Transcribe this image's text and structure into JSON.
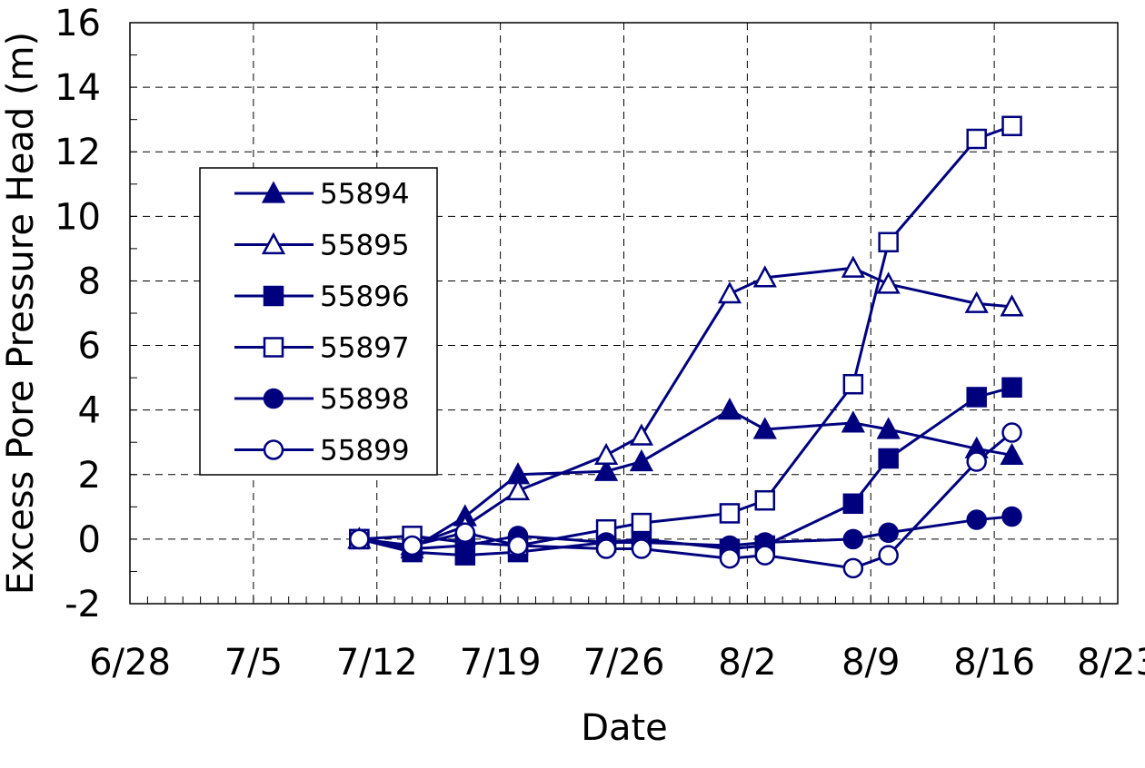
{
  "chart_data": {
    "type": "line",
    "title": "",
    "xlabel": "Date",
    "ylabel": "Excess Pore Pressure Head (m)",
    "x_ticks": [
      "6/28",
      "7/5",
      "7/12",
      "7/19",
      "7/26",
      "8/2",
      "8/9",
      "8/16",
      "8/23"
    ],
    "x_tick_dates": [
      "2024-06-28",
      "2024-07-05",
      "2024-07-12",
      "2024-07-19",
      "2024-07-26",
      "2024-08-02",
      "2024-08-09",
      "2024-08-16",
      "2024-08-23"
    ],
    "xlim": [
      "2024-06-28",
      "2024-08-23"
    ],
    "y_ticks": [
      "-2",
      "0",
      "2",
      "4",
      "6",
      "8",
      "10",
      "12",
      "14",
      "16"
    ],
    "ylim": [
      -2,
      16
    ],
    "grid": true,
    "legend_position": "upper-left inside plot",
    "line_color": "#00007f",
    "series": [
      {
        "name": "55894",
        "marker": "triangle-filled",
        "x": [
          "2024-07-11",
          "2024-07-14",
          "2024-07-17",
          "2024-07-20",
          "2024-07-25",
          "2024-07-27",
          "2024-08-01",
          "2024-08-03",
          "2024-08-08",
          "2024-08-10",
          "2024-08-15",
          "2024-08-17"
        ],
        "y": [
          0,
          -0.3,
          0.7,
          2.0,
          2.1,
          2.4,
          4.0,
          3.4,
          3.6,
          3.4,
          2.8,
          2.6
        ]
      },
      {
        "name": "55895",
        "marker": "triangle-open",
        "x": [
          "2024-07-11",
          "2024-07-14",
          "2024-07-17",
          "2024-07-20",
          "2024-07-25",
          "2024-07-27",
          "2024-08-01",
          "2024-08-03",
          "2024-08-08",
          "2024-08-10",
          "2024-08-15",
          "2024-08-17"
        ],
        "y": [
          0,
          -0.2,
          0.4,
          1.5,
          2.6,
          3.2,
          7.6,
          8.1,
          8.4,
          7.9,
          7.3,
          7.2
        ]
      },
      {
        "name": "55896",
        "marker": "square-filled",
        "x": [
          "2024-07-11",
          "2024-07-14",
          "2024-07-17",
          "2024-07-20",
          "2024-07-25",
          "2024-07-27",
          "2024-08-01",
          "2024-08-03",
          "2024-08-08",
          "2024-08-10",
          "2024-08-15",
          "2024-08-17"
        ],
        "y": [
          0,
          -0.4,
          -0.5,
          -0.4,
          -0.1,
          0,
          -0.3,
          -0.2,
          1.1,
          2.5,
          4.4,
          4.7
        ]
      },
      {
        "name": "55897",
        "marker": "square-open",
        "x": [
          "2024-07-11",
          "2024-07-14",
          "2024-07-17",
          "2024-07-20",
          "2024-07-25",
          "2024-07-27",
          "2024-08-01",
          "2024-08-03",
          "2024-08-08",
          "2024-08-10",
          "2024-08-15",
          "2024-08-17"
        ],
        "y": [
          0,
          0.1,
          -0.1,
          -0.2,
          0.3,
          0.5,
          0.8,
          1.2,
          4.8,
          9.2,
          12.4,
          12.8
        ]
      },
      {
        "name": "55898",
        "marker": "circle-filled",
        "x": [
          "2024-07-11",
          "2024-07-14",
          "2024-07-17",
          "2024-07-20",
          "2024-07-25",
          "2024-07-27",
          "2024-08-01",
          "2024-08-03",
          "2024-08-08",
          "2024-08-10",
          "2024-08-15",
          "2024-08-17"
        ],
        "y": [
          0,
          -0.3,
          -0.2,
          0.1,
          -0.1,
          -0.1,
          -0.2,
          -0.1,
          0,
          0.2,
          0.6,
          0.7
        ]
      },
      {
        "name": "55899",
        "marker": "circle-open",
        "x": [
          "2024-07-11",
          "2024-07-14",
          "2024-07-17",
          "2024-07-20",
          "2024-07-25",
          "2024-07-27",
          "2024-08-01",
          "2024-08-03",
          "2024-08-08",
          "2024-08-10",
          "2024-08-15",
          "2024-08-17"
        ],
        "y": [
          0,
          -0.2,
          0.2,
          -0.2,
          -0.3,
          -0.3,
          -0.6,
          -0.5,
          -0.9,
          -0.5,
          2.4,
          3.3
        ]
      }
    ]
  }
}
